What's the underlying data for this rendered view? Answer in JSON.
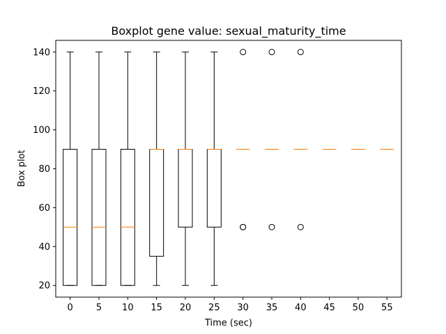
{
  "chart_data": {
    "type": "boxplot",
    "title": "Boxplot gene value: sexual_maturity_time",
    "xlabel": "Time (sec)",
    "ylabel": "Box plot",
    "ylim": [
      14,
      146
    ],
    "yticks": [
      20,
      40,
      60,
      80,
      100,
      120,
      140
    ],
    "categories": [
      "0",
      "5",
      "10",
      "15",
      "20",
      "25",
      "30",
      "35",
      "40",
      "45",
      "50",
      "55"
    ],
    "grid": false,
    "colors": {
      "box": "#000000",
      "median": "#ff7f0e",
      "flier": "#000000"
    },
    "boxes": [
      {
        "label": "0",
        "whislo": 20,
        "q1": 20,
        "med": 50,
        "q3": 90,
        "whishi": 140,
        "fliers": []
      },
      {
        "label": "5",
        "whislo": 20,
        "q1": 20,
        "med": 50,
        "q3": 90,
        "whishi": 140,
        "fliers": []
      },
      {
        "label": "10",
        "whislo": 20,
        "q1": 20,
        "med": 50,
        "q3": 90,
        "whishi": 140,
        "fliers": []
      },
      {
        "label": "15",
        "whislo": 20,
        "q1": 35,
        "med": 90,
        "q3": 90,
        "whishi": 140,
        "fliers": []
      },
      {
        "label": "20",
        "whislo": 20,
        "q1": 50,
        "med": 90,
        "q3": 90,
        "whishi": 140,
        "fliers": []
      },
      {
        "label": "25",
        "whislo": 20,
        "q1": 50,
        "med": 90,
        "q3": 90,
        "whishi": 140,
        "fliers": []
      },
      {
        "label": "30",
        "whislo": 90,
        "q1": 90,
        "med": 90,
        "q3": 90,
        "whishi": 90,
        "fliers": [
          50,
          50,
          140
        ]
      },
      {
        "label": "35",
        "whislo": 90,
        "q1": 90,
        "med": 90,
        "q3": 90,
        "whishi": 90,
        "fliers": [
          50,
          140
        ]
      },
      {
        "label": "40",
        "whislo": 90,
        "q1": 90,
        "med": 90,
        "q3": 90,
        "whishi": 90,
        "fliers": [
          50,
          140
        ]
      },
      {
        "label": "45",
        "whislo": 90,
        "q1": 90,
        "med": 90,
        "q3": 90,
        "whishi": 90,
        "fliers": []
      },
      {
        "label": "50",
        "whislo": 90,
        "q1": 90,
        "med": 90,
        "q3": 90,
        "whishi": 90,
        "fliers": []
      },
      {
        "label": "55",
        "whislo": 90,
        "q1": 90,
        "med": 90,
        "q3": 90,
        "whishi": 90,
        "fliers": []
      }
    ]
  }
}
